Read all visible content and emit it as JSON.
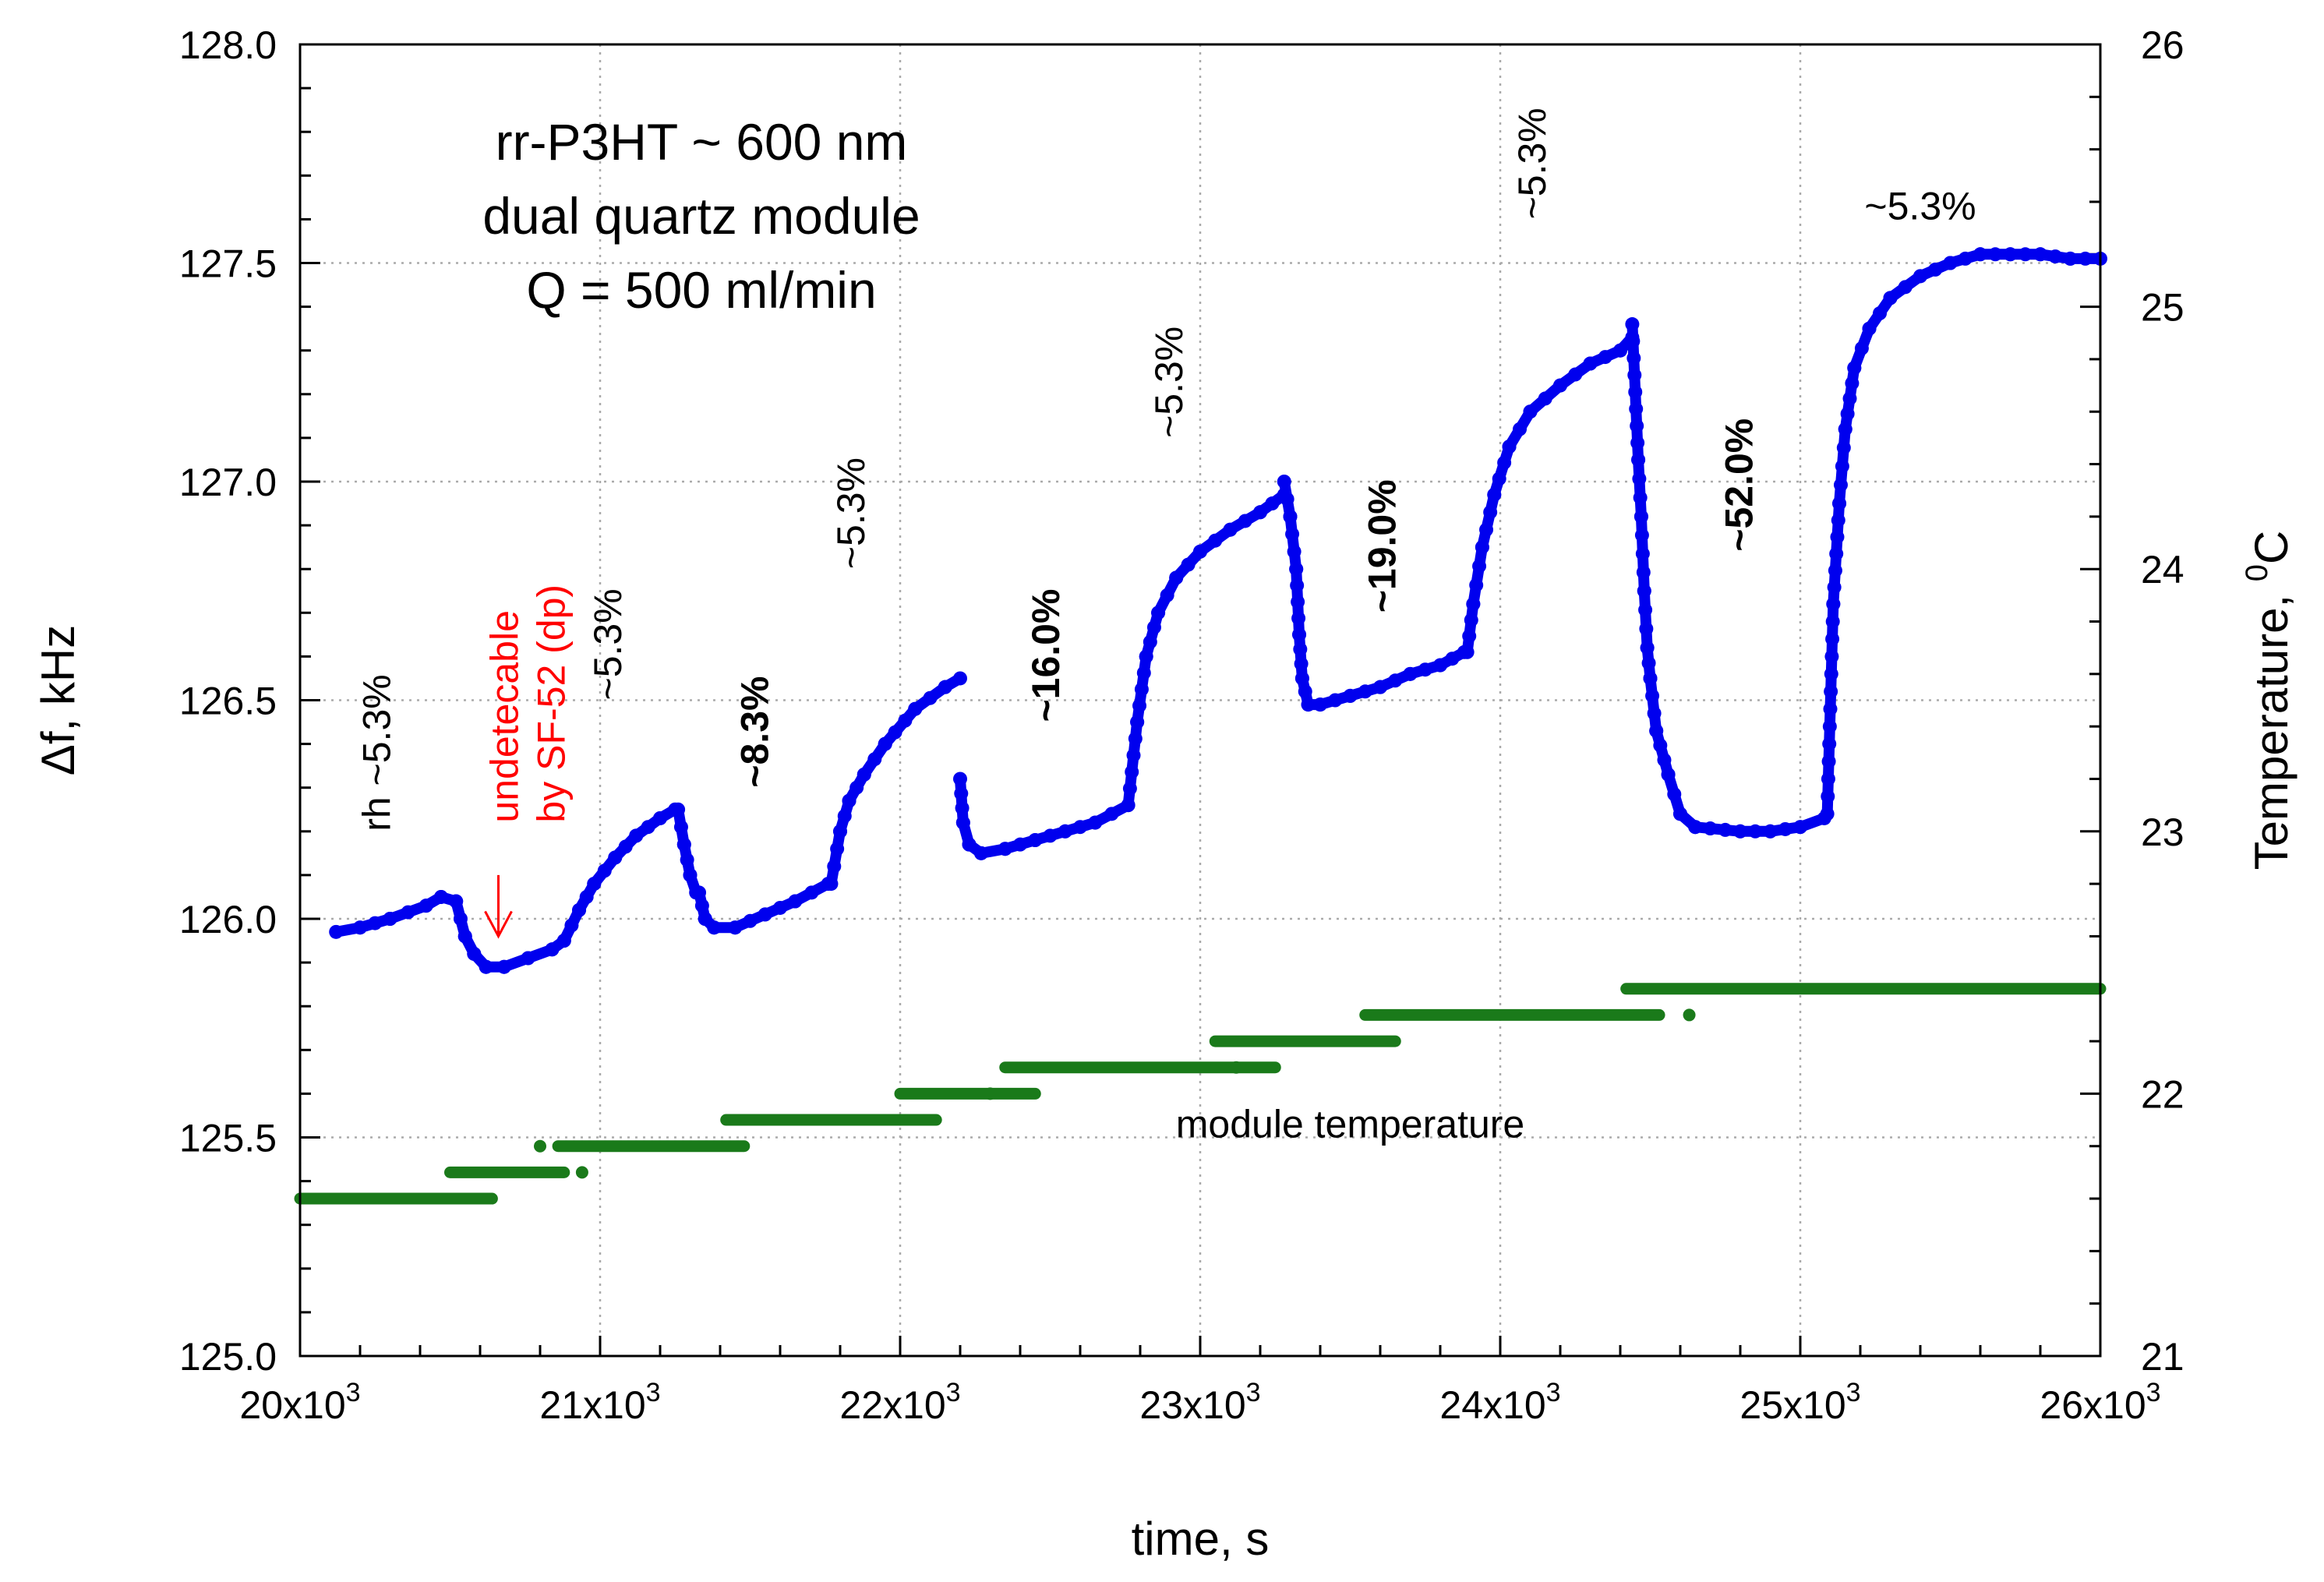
{
  "chart_data": {
    "type": "scatter",
    "title_lines": [
      "rr-P3HT ~ 600 nm",
      "dual quartz module",
      "Q = 500 ml/min"
    ],
    "xlabel": "time, s",
    "ylabel": "Δf, kHz",
    "y2label_prefix": "Temperature, ",
    "y2label_sup": "0",
    "y2label_suffix": "C",
    "xlim": [
      20000,
      26000
    ],
    "ylim": [
      125.0,
      128.0
    ],
    "y2lim": [
      21,
      26
    ],
    "grid": true,
    "x_ticks": [
      {
        "value": 20000,
        "base": "20x10",
        "exp": "3"
      },
      {
        "value": 21000,
        "base": "21x10",
        "exp": "3"
      },
      {
        "value": 22000,
        "base": "22x10",
        "exp": "3"
      },
      {
        "value": 23000,
        "base": "23x10",
        "exp": "3"
      },
      {
        "value": 24000,
        "base": "24x10",
        "exp": "3"
      },
      {
        "value": 25000,
        "base": "25x10",
        "exp": "3"
      },
      {
        "value": 26000,
        "base": "26x10",
        "exp": "3"
      }
    ],
    "y_ticks": [
      {
        "value": 125.0,
        "label": "125.0"
      },
      {
        "value": 125.5,
        "label": "125.5"
      },
      {
        "value": 126.0,
        "label": "126.0"
      },
      {
        "value": 126.5,
        "label": "126.5"
      },
      {
        "value": 127.0,
        "label": "127.0"
      },
      {
        "value": 127.5,
        "label": "127.5"
      },
      {
        "value": 128.0,
        "label": "128.0"
      }
    ],
    "y2_ticks": [
      {
        "value": 21,
        "label": "21"
      },
      {
        "value": 22,
        "label": "22"
      },
      {
        "value": 23,
        "label": "23"
      },
      {
        "value": 24,
        "label": "24"
      },
      {
        "value": 25,
        "label": "25"
      },
      {
        "value": 26,
        "label": "26"
      }
    ],
    "series": [
      {
        "name": "Δf",
        "axis": "left",
        "color": "#0000ee",
        "segments": [
          [
            [
              20120,
              125.97
            ],
            [
              20200,
              125.98
            ],
            [
              20300,
              126.0
            ],
            [
              20420,
              126.03
            ],
            [
              20470,
              126.05
            ],
            [
              20520,
              126.04
            ]
          ],
          [
            [
              20520,
              126.04
            ],
            [
              20550,
              125.96
            ],
            [
              20580,
              125.92
            ],
            [
              20620,
              125.89
            ],
            [
              20680,
              125.89
            ],
            [
              20760,
              125.91
            ],
            [
              20840,
              125.93
            ],
            [
              20880,
              125.95
            ]
          ],
          [
            [
              20880,
              125.95
            ],
            [
              20930,
              126.02
            ],
            [
              20980,
              126.08
            ],
            [
              21050,
              126.14
            ],
            [
              21120,
              126.19
            ],
            [
              21200,
              126.23
            ],
            [
              21250,
              126.25
            ]
          ],
          [
            [
              21260,
              126.25
            ],
            [
              21280,
              126.17
            ],
            [
              21300,
              126.1
            ],
            [
              21320,
              126.06
            ]
          ],
          [
            [
              21330,
              126.06
            ],
            [
              21350,
              126.0
            ],
            [
              21380,
              125.98
            ],
            [
              21450,
              125.98
            ],
            [
              21550,
              126.01
            ],
            [
              21650,
              126.04
            ],
            [
              21760,
              126.08
            ]
          ],
          [
            [
              21770,
              126.08
            ],
            [
              21800,
              126.2
            ],
            [
              21830,
              126.27
            ],
            [
              21880,
              126.33
            ],
            [
              21950,
              126.4
            ],
            [
              22050,
              126.48
            ],
            [
              22150,
              126.53
            ],
            [
              22200,
              126.55
            ]
          ],
          [
            [
              22200,
              126.32
            ],
            [
              22210,
              126.22
            ],
            [
              22230,
              126.17
            ],
            [
              22270,
              126.15
            ],
            [
              22350,
              126.16
            ],
            [
              22450,
              126.18
            ],
            [
              22550,
              126.2
            ],
            [
              22650,
              126.22
            ],
            [
              22760,
              126.26
            ]
          ],
          [
            [
              22760,
              126.26
            ],
            [
              22790,
              126.45
            ],
            [
              22820,
              126.6
            ],
            [
              22860,
              126.7
            ],
            [
              22920,
              126.78
            ],
            [
              23000,
              126.84
            ],
            [
              23100,
              126.89
            ],
            [
              23200,
              126.93
            ],
            [
              23280,
              126.97
            ]
          ],
          [
            [
              23280,
              127.0
            ],
            [
              23300,
              126.92
            ],
            [
              23320,
              126.8
            ],
            [
              23330,
              126.65
            ],
            [
              23340,
              126.55
            ],
            [
              23360,
              126.49
            ],
            [
              23400,
              126.49
            ],
            [
              23500,
              126.51
            ],
            [
              23600,
              126.53
            ],
            [
              23700,
              126.56
            ],
            [
              23800,
              126.58
            ],
            [
              23880,
              126.61
            ]
          ],
          [
            [
              23890,
              126.61
            ],
            [
              23910,
              126.72
            ],
            [
              23940,
              126.85
            ],
            [
              23980,
              126.97
            ],
            [
              24030,
              127.08
            ],
            [
              24100,
              127.16
            ],
            [
              24200,
              127.22
            ],
            [
              24300,
              127.27
            ],
            [
              24400,
              127.3
            ],
            [
              24440,
              127.33
            ]
          ],
          [
            [
              24440,
              127.36
            ],
            [
              24460,
              127.05
            ],
            [
              24470,
              126.92
            ],
            [
              24480,
              126.75
            ],
            [
              24490,
              126.62
            ],
            [
              24500,
              126.55
            ],
            [
              24520,
              126.43
            ],
            [
              24560,
              126.33
            ],
            [
              24600,
              126.24
            ],
            [
              24650,
              126.21
            ],
            [
              24800,
              126.2
            ],
            [
              24900,
              126.2
            ],
            [
              25000,
              126.21
            ],
            [
              25080,
              126.23
            ]
          ],
          [
            [
              25090,
              126.24
            ],
            [
              25110,
              126.72
            ],
            [
              25130,
              126.95
            ],
            [
              25150,
              127.12
            ],
            [
              25180,
              127.26
            ],
            [
              25230,
              127.35
            ],
            [
              25300,
              127.42
            ],
            [
              25400,
              127.47
            ],
            [
              25500,
              127.5
            ],
            [
              25600,
              127.52
            ],
            [
              25700,
              127.52
            ],
            [
              25800,
              127.52
            ],
            [
              25900,
              127.51
            ],
            [
              26000,
              127.51
            ]
          ]
        ]
      },
      {
        "name": "module temperature",
        "axis": "right",
        "color": "#1a7a1a",
        "steps": [
          [
            20000,
            20640,
            21.6
          ],
          [
            20500,
            20880,
            21.7
          ],
          [
            20860,
            21480,
            21.8
          ],
          [
            21420,
            22120,
            21.9
          ],
          [
            22000,
            22450,
            22.0
          ],
          [
            22350,
            23250,
            22.1
          ],
          [
            23050,
            23650,
            22.2
          ],
          [
            23550,
            24530,
            22.3
          ],
          [
            24420,
            26000,
            22.4
          ]
        ],
        "outliers": [
          [
            20940,
            21.7
          ],
          [
            20800,
            21.8
          ],
          [
            22300,
            22.0
          ],
          [
            23120,
            22.1
          ],
          [
            24630,
            22.3
          ]
        ]
      }
    ],
    "annotations": [
      {
        "text": "rh ~5.3%",
        "x": 20300,
        "y": 126.2,
        "rotation": -90,
        "bold": false
      },
      {
        "text": "~5.3%",
        "x": 21070,
        "y": 126.5,
        "rotation": -90,
        "bold": false
      },
      {
        "text": "~8.3%",
        "x": 21560,
        "y": 126.3,
        "rotation": -90,
        "bold": true
      },
      {
        "text": "~5.3%",
        "x": 21880,
        "y": 126.8,
        "rotation": -90,
        "bold": false
      },
      {
        "text": "~16.0%",
        "x": 22530,
        "y": 126.45,
        "rotation": -90,
        "bold": true
      },
      {
        "text": "~5.3%",
        "x": 22940,
        "y": 127.1,
        "rotation": -90,
        "bold": false
      },
      {
        "text": "~19.0%",
        "x": 23650,
        "y": 126.7,
        "rotation": -90,
        "bold": true
      },
      {
        "text": "~5.3%",
        "x": 24150,
        "y": 127.6,
        "rotation": -90,
        "bold": false
      },
      {
        "text": "~52.0%",
        "x": 24840,
        "y": 126.84,
        "rotation": -90,
        "bold": true
      },
      {
        "text": "~5.3%",
        "x": 25400,
        "y": 127.6,
        "rotation": 0,
        "bold": false
      },
      {
        "text": "module temperature",
        "x": 23500,
        "y": 125.5,
        "rotation": 0,
        "bold": false
      }
    ],
    "red_annotation": {
      "lines": [
        "undetecable",
        "by SF-52 (dp)"
      ],
      "arrow_x": 20700,
      "color": "#ff0000"
    }
  }
}
